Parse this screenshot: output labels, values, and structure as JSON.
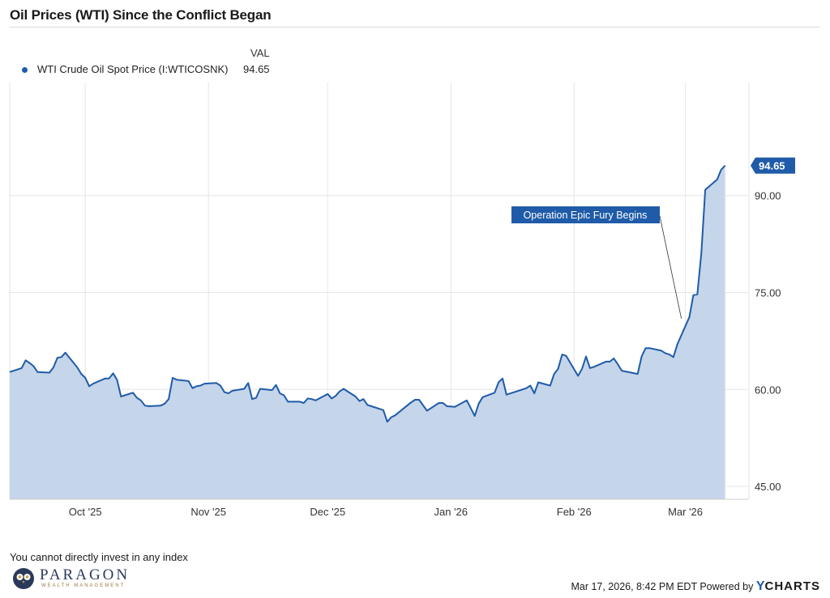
{
  "title": "Oil Prices (WTI) Since the Conflict Began",
  "legend": {
    "column_header": "VAL",
    "series_name": "WTI Crude Oil Spot Price (I:WTICOSNK)",
    "series_value": "94.65",
    "series_color": "#1f5ba8"
  },
  "footer": {
    "disclaimer": "You cannot directly invest in any index",
    "logo_word": "PARAGON",
    "logo_sub": "WEALTH MANAGEMENT",
    "timestamp": "Mar 17, 2026, 8:42 PM EDT Powered by",
    "brand_y": "Y",
    "brand_rest": "CHARTS"
  },
  "chart_data": {
    "type": "area",
    "title": "Oil Prices (WTI) Since the Conflict Began",
    "xlabel": "",
    "ylabel": "",
    "ylim": [
      43,
      107.5
    ],
    "yticks": [
      {
        "value": 45,
        "label": "45.00"
      },
      {
        "value": 60,
        "label": "60.00"
      },
      {
        "value": 75,
        "label": "75.00"
      },
      {
        "value": 90,
        "label": "90.00"
      }
    ],
    "xlim": [
      "2025-09-12",
      "2026-03-17"
    ],
    "xticks": [
      {
        "date": "2025-10-01",
        "label": "Oct '25"
      },
      {
        "date": "2025-11-01",
        "label": "Nov '25"
      },
      {
        "date": "2025-12-01",
        "label": "Dec '25"
      },
      {
        "date": "2026-01-01",
        "label": "Jan '26"
      },
      {
        "date": "2026-02-01",
        "label": "Feb '26"
      },
      {
        "date": "2026-03-01",
        "label": "Mar '26"
      }
    ],
    "grid": true,
    "legend_position": "top-left",
    "last_value_label": "94.65",
    "annotation": {
      "text": "Operation Epic Fury Begins",
      "date": "2026-02-28",
      "value": 71.2
    },
    "series": [
      {
        "name": "WTI Crude Oil Spot Price (I:WTICOSNK)",
        "points": [
          [
            "2025-09-12",
            62.7
          ],
          [
            "2025-09-15",
            63.3
          ],
          [
            "2025-09-16",
            64.5
          ],
          [
            "2025-09-17",
            64.1
          ],
          [
            "2025-09-18",
            63.6
          ],
          [
            "2025-09-19",
            62.7
          ],
          [
            "2025-09-22",
            62.6
          ],
          [
            "2025-09-23",
            63.4
          ],
          [
            "2025-09-24",
            64.9
          ],
          [
            "2025-09-25",
            65.0
          ],
          [
            "2025-09-26",
            65.7
          ],
          [
            "2025-09-29",
            63.4
          ],
          [
            "2025-09-30",
            62.4
          ],
          [
            "2025-10-01",
            61.8
          ],
          [
            "2025-10-02",
            60.5
          ],
          [
            "2025-10-03",
            60.9
          ],
          [
            "2025-10-06",
            61.7
          ],
          [
            "2025-10-07",
            61.7
          ],
          [
            "2025-10-08",
            62.5
          ],
          [
            "2025-10-09",
            61.5
          ],
          [
            "2025-10-10",
            58.9
          ],
          [
            "2025-10-13",
            59.5
          ],
          [
            "2025-10-14",
            58.7
          ],
          [
            "2025-10-15",
            58.3
          ],
          [
            "2025-10-16",
            57.5
          ],
          [
            "2025-10-17",
            57.4
          ],
          [
            "2025-10-20",
            57.5
          ],
          [
            "2025-10-21",
            57.8
          ],
          [
            "2025-10-22",
            58.5
          ],
          [
            "2025-10-23",
            61.8
          ],
          [
            "2025-10-24",
            61.5
          ],
          [
            "2025-10-27",
            61.3
          ],
          [
            "2025-10-28",
            60.2
          ],
          [
            "2025-10-29",
            60.5
          ],
          [
            "2025-10-30",
            60.6
          ],
          [
            "2025-10-31",
            60.9
          ],
          [
            "2025-11-03",
            61.0
          ],
          [
            "2025-11-04",
            60.6
          ],
          [
            "2025-11-05",
            59.6
          ],
          [
            "2025-11-06",
            59.4
          ],
          [
            "2025-11-07",
            59.8
          ],
          [
            "2025-11-10",
            60.1
          ],
          [
            "2025-11-11",
            61.0
          ],
          [
            "2025-11-12",
            58.5
          ],
          [
            "2025-11-13",
            58.7
          ],
          [
            "2025-11-14",
            60.1
          ],
          [
            "2025-11-17",
            59.9
          ],
          [
            "2025-11-18",
            60.7
          ],
          [
            "2025-11-19",
            59.4
          ],
          [
            "2025-11-20",
            59.1
          ],
          [
            "2025-11-21",
            58.1
          ],
          [
            "2025-11-24",
            58.1
          ],
          [
            "2025-11-25",
            57.9
          ],
          [
            "2025-11-26",
            58.6
          ],
          [
            "2025-11-27",
            58.5
          ],
          [
            "2025-11-28",
            58.3
          ],
          [
            "2025-12-01",
            59.3
          ],
          [
            "2025-12-02",
            58.6
          ],
          [
            "2025-12-03",
            59.0
          ],
          [
            "2025-12-04",
            59.7
          ],
          [
            "2025-12-05",
            60.1
          ],
          [
            "2025-12-08",
            58.9
          ],
          [
            "2025-12-09",
            58.2
          ],
          [
            "2025-12-10",
            58.5
          ],
          [
            "2025-12-11",
            57.6
          ],
          [
            "2025-12-12",
            57.4
          ],
          [
            "2025-12-15",
            56.8
          ],
          [
            "2025-12-16",
            55.0
          ],
          [
            "2025-12-17",
            55.7
          ],
          [
            "2025-12-18",
            56.0
          ],
          [
            "2025-12-19",
            56.5
          ],
          [
            "2025-12-22",
            58.0
          ],
          [
            "2025-12-23",
            58.4
          ],
          [
            "2025-12-24",
            58.4
          ],
          [
            "2025-12-26",
            56.7
          ],
          [
            "2025-12-29",
            57.9
          ],
          [
            "2025-12-30",
            57.9
          ],
          [
            "2025-12-31",
            57.4
          ],
          [
            "2026-01-02",
            57.3
          ],
          [
            "2026-01-05",
            58.3
          ],
          [
            "2026-01-06",
            57.1
          ],
          [
            "2026-01-07",
            55.9
          ],
          [
            "2026-01-08",
            57.8
          ],
          [
            "2026-01-09",
            58.8
          ],
          [
            "2026-01-12",
            59.5
          ],
          [
            "2026-01-13",
            61.1
          ],
          [
            "2026-01-14",
            61.7
          ],
          [
            "2026-01-15",
            59.2
          ],
          [
            "2026-01-16",
            59.4
          ],
          [
            "2026-01-20",
            60.2
          ],
          [
            "2026-01-21",
            60.6
          ],
          [
            "2026-01-22",
            59.4
          ],
          [
            "2026-01-23",
            61.1
          ],
          [
            "2026-01-26",
            60.6
          ],
          [
            "2026-01-27",
            62.4
          ],
          [
            "2026-01-28",
            63.2
          ],
          [
            "2026-01-29",
            65.4
          ],
          [
            "2026-01-30",
            65.2
          ],
          [
            "2026-02-02",
            62.1
          ],
          [
            "2026-02-03",
            63.2
          ],
          [
            "2026-02-04",
            65.1
          ],
          [
            "2026-02-05",
            63.3
          ],
          [
            "2026-02-06",
            63.5
          ],
          [
            "2026-02-09",
            64.3
          ],
          [
            "2026-02-10",
            64.3
          ],
          [
            "2026-02-11",
            64.8
          ],
          [
            "2026-02-12",
            63.9
          ],
          [
            "2026-02-13",
            62.9
          ],
          [
            "2026-02-17",
            62.4
          ],
          [
            "2026-02-18",
            65.1
          ],
          [
            "2026-02-19",
            66.4
          ],
          [
            "2026-02-20",
            66.4
          ],
          [
            "2026-02-23",
            66.0
          ],
          [
            "2026-02-24",
            65.6
          ],
          [
            "2026-02-25",
            65.4
          ],
          [
            "2026-02-26",
            65.0
          ],
          [
            "2026-02-27",
            67.0
          ],
          [
            "2026-03-02",
            71.2
          ],
          [
            "2026-03-03",
            74.6
          ],
          [
            "2026-03-04",
            74.7
          ],
          [
            "2026-03-05",
            81.0
          ],
          [
            "2026-03-06",
            90.9
          ],
          [
            "2026-03-09",
            92.5
          ],
          [
            "2026-03-10",
            94.0
          ],
          [
            "2026-03-11",
            94.65
          ]
        ]
      }
    ]
  }
}
